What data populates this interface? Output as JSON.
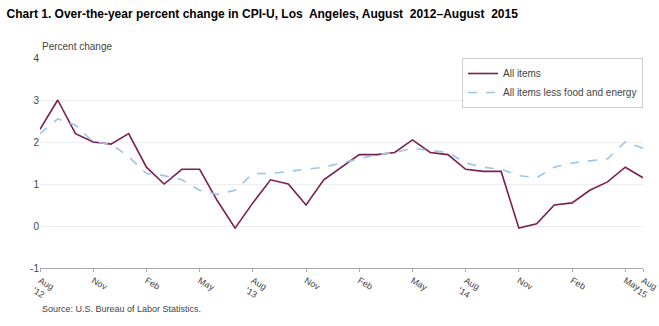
{
  "chart_data": {
    "type": "line",
    "title": "Chart 1. Over-the-year percent change in CPI-U, Los  Angeles, August  2012–August  2015",
    "ylabel": "Percent change",
    "source": "Source: U.S. Bureau of Labor Statistics.",
    "categories": [
      "Aug\n'12",
      null,
      null,
      "Nov",
      null,
      null,
      "Feb",
      null,
      null,
      "May",
      null,
      null,
      "Aug\n'13",
      null,
      null,
      "Nov",
      null,
      null,
      "Feb",
      null,
      null,
      "May",
      null,
      null,
      "Aug\n'14",
      null,
      null,
      "Nov",
      null,
      null,
      "Feb",
      null,
      null,
      "May",
      "Aug\n'15"
    ],
    "series": [
      {
        "name": "All items",
        "color": "#7B1F4E",
        "line_style": "solid",
        "values": [
          2.3,
          3.0,
          2.2,
          2.0,
          1.95,
          2.2,
          1.4,
          1.0,
          1.35,
          1.35,
          0.6,
          -0.05,
          0.55,
          1.1,
          1.0,
          0.5,
          1.1,
          1.4,
          1.7,
          1.7,
          1.75,
          2.05,
          1.75,
          1.7,
          1.35,
          1.3,
          1.3,
          -0.05,
          0.05,
          0.5,
          0.55,
          0.85,
          1.05,
          1.4,
          1.15
        ]
      },
      {
        "name": "All items less food and energy",
        "color": "#9DC3E6",
        "line_style": "dashed",
        "values": [
          2.2,
          2.55,
          2.4,
          2.0,
          1.95,
          1.65,
          1.25,
          1.2,
          1.1,
          0.85,
          0.75,
          0.85,
          1.25,
          1.25,
          1.3,
          1.35,
          1.4,
          1.5,
          1.6,
          1.7,
          1.75,
          1.85,
          1.8,
          1.75,
          1.5,
          1.4,
          1.35,
          1.2,
          1.15,
          1.4,
          1.5,
          1.55,
          1.6,
          2.0,
          1.85
        ]
      }
    ],
    "ylim": [
      -1.0,
      4.0
    ],
    "yticks": [
      -1.0,
      0.0,
      1.0,
      2.0,
      3.0,
      4.0
    ],
    "grid": true,
    "legend": "upper right"
  }
}
